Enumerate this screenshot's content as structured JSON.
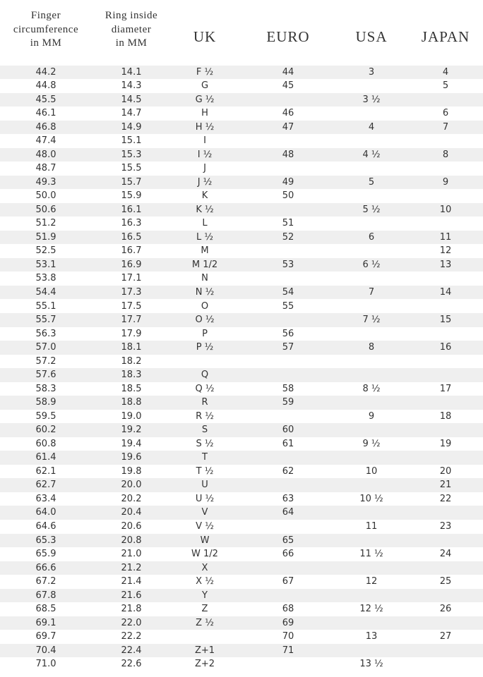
{
  "table": {
    "header": [
      [
        "Finger",
        "circumference",
        "in MM"
      ],
      [
        "Ring inside",
        "diameter",
        "in MM"
      ],
      [
        "UK"
      ],
      [
        "EURO"
      ],
      [
        "USA"
      ],
      [
        "JAPAN"
      ]
    ],
    "rows": [
      [
        "44.2",
        "14.1",
        "F ½",
        "44",
        "3",
        "4"
      ],
      [
        "44.8",
        "14.3",
        "G",
        "45",
        null,
        "5"
      ],
      [
        "45.5",
        "14.5",
        "G ½",
        null,
        "3 ½",
        null
      ],
      [
        "46.1",
        "14.7",
        "H",
        "46",
        null,
        "6"
      ],
      [
        "46.8",
        "14.9",
        "H ½",
        "47",
        "4",
        "7"
      ],
      [
        "47.4",
        "15.1",
        "I",
        null,
        null,
        null
      ],
      [
        "48.0",
        "15.3",
        "I ½",
        "48",
        "4 ½",
        "8"
      ],
      [
        "48.7",
        "15.5",
        "J",
        null,
        null,
        null
      ],
      [
        "49.3",
        "15.7",
        "J ½",
        "49",
        "5",
        "9"
      ],
      [
        "50.0",
        "15.9",
        "K",
        "50",
        null,
        null
      ],
      [
        "50.6",
        "16.1",
        "K ½",
        null,
        "5 ½",
        "10"
      ],
      [
        "51.2",
        "16.3",
        "L",
        "51",
        null,
        null
      ],
      [
        "51.9",
        "16.5",
        "L ½",
        "52",
        "6",
        "11"
      ],
      [
        "52.5",
        "16.7",
        "M",
        null,
        null,
        "12"
      ],
      [
        "53.1",
        "16.9",
        "M 1/2",
        "53",
        "6 ½",
        "13"
      ],
      [
        "53.8",
        "17.1",
        "N",
        null,
        null,
        null
      ],
      [
        "54.4",
        "17.3",
        "N ½",
        "54",
        "7",
        "14"
      ],
      [
        "55.1",
        "17.5",
        "O",
        "55",
        null,
        null
      ],
      [
        "55.7",
        "17.7",
        "O ½",
        null,
        "7 ½",
        "15"
      ],
      [
        "56.3",
        "17.9",
        "P",
        "56",
        null,
        null
      ],
      [
        "57.0",
        "18.1",
        "P ½",
        "57",
        "8",
        "16"
      ],
      [
        "57.2",
        "18.2",
        null,
        null,
        null,
        null
      ],
      [
        "57.6",
        "18.3",
        "Q",
        null,
        null,
        null
      ],
      [
        "58.3",
        "18.5",
        "Q ½",
        "58",
        "8 ½",
        "17"
      ],
      [
        "58.9",
        "18.8",
        "R",
        "59",
        null,
        null
      ],
      [
        "59.5",
        "19.0",
        "R ½",
        null,
        "9",
        "18"
      ],
      [
        "60.2",
        "19.2",
        "S",
        "60",
        null,
        null
      ],
      [
        "60.8",
        "19.4",
        "S ½",
        "61",
        "9 ½",
        "19"
      ],
      [
        "61.4",
        "19.6",
        "T",
        null,
        null,
        null
      ],
      [
        "62.1",
        "19.8",
        "T ½",
        "62",
        "10",
        "20"
      ],
      [
        "62.7",
        "20.0",
        "U",
        null,
        null,
        "21"
      ],
      [
        "63.4",
        "20.2",
        "U ½",
        "63",
        "10 ½",
        "22"
      ],
      [
        "64.0",
        "20.4",
        "V",
        "64",
        null,
        null
      ],
      [
        "64.6",
        "20.6",
        "V ½",
        null,
        "11",
        "23"
      ],
      [
        "65.3",
        "20.8",
        "W",
        "65",
        null,
        null
      ],
      [
        "65.9",
        "21.0",
        "W 1/2",
        "66",
        "11 ½",
        "24"
      ],
      [
        "66.6",
        "21.2",
        "X",
        null,
        null,
        null
      ],
      [
        "67.2",
        "21.4",
        "X ½",
        "67",
        "12",
        "25"
      ],
      [
        "67.8",
        "21.6",
        "Y",
        null,
        null,
        null
      ],
      [
        "68.5",
        "21.8",
        "Z",
        "68",
        "12 ½",
        "26"
      ],
      [
        "69.1",
        "22.0",
        "Z ½",
        "69",
        null,
        null
      ],
      [
        "69.7",
        "22.2",
        null,
        "70",
        "13",
        "27"
      ],
      [
        "70.4",
        "22.4",
        "Z+1",
        "71",
        null,
        null
      ],
      [
        "71.0",
        "22.6",
        "Z+2",
        null,
        "13 ½",
        null
      ]
    ]
  }
}
